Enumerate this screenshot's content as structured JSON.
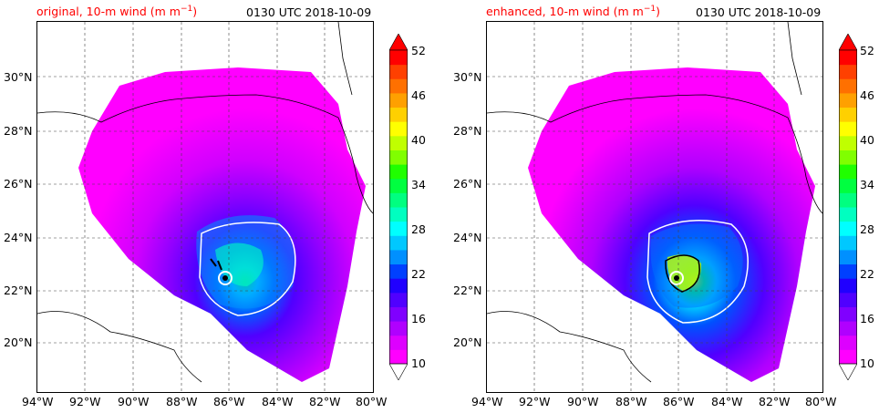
{
  "panels": [
    {
      "title": "original, 10-m wind (m m",
      "title_sup": "−1",
      "title_close": ")",
      "time": "0130 UTC 2018-10-09"
    },
    {
      "title": "enhanced, 10-m wind (m m",
      "title_sup": "−1",
      "title_close": ")",
      "time": "0130 UTC 2018-10-09"
    }
  ],
  "lat_labels": [
    "30°N",
    "28°N",
    "26°N",
    "24°N",
    "22°N",
    "20°N"
  ],
  "lon_labels": [
    "94°W",
    "92°W",
    "90°W",
    "88°W",
    "86°W",
    "84°W",
    "82°W",
    "80°W"
  ],
  "colorbar_ticks": [
    "52",
    "46",
    "40",
    "34",
    "28",
    "22",
    "16",
    "10"
  ],
  "colorbar_colors": [
    "#ff00ff",
    "#dd00ff",
    "#b000ff",
    "#8000ff",
    "#5000ff",
    "#2000ff",
    "#0040ff",
    "#0090ff",
    "#00c8ff",
    "#00ffff",
    "#00ffc0",
    "#00ff80",
    "#00ff40",
    "#20ff00",
    "#80ff00",
    "#c0ff00",
    "#ffff00",
    "#ffd000",
    "#ffa000",
    "#ff7000",
    "#ff4000",
    "#ff0000"
  ]
}
